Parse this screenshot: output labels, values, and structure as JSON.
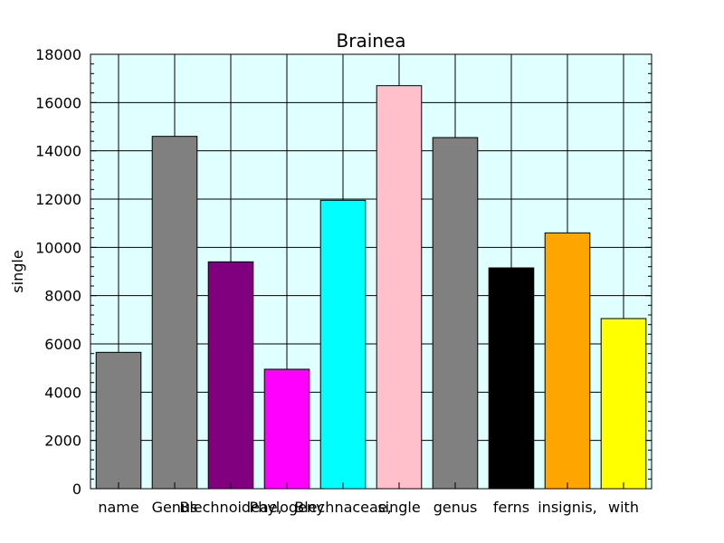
{
  "chart_data": {
    "type": "bar",
    "title": "Brainea",
    "xlabel": "",
    "ylabel": "single",
    "categories": [
      "name",
      "Genus",
      "Blechnoideae,",
      "Phylogeny",
      "Blechnaceae,",
      "single",
      "genus",
      "ferns",
      "insignis,",
      "with"
    ],
    "values": [
      5650,
      14600,
      9400,
      4950,
      11950,
      16700,
      14550,
      9150,
      10600,
      7050
    ],
    "colors": [
      "#808080",
      "#808080",
      "#800080",
      "#ff00ff",
      "#00ffff",
      "#ffc0cb",
      "#808080",
      "#000000",
      "#ffa500",
      "#ffff00"
    ],
    "ylim": [
      0,
      18000
    ],
    "yticks": [
      0,
      2000,
      4000,
      6000,
      8000,
      10000,
      12000,
      14000,
      16000,
      18000
    ],
    "grid": true,
    "background": "#e0ffff"
  }
}
